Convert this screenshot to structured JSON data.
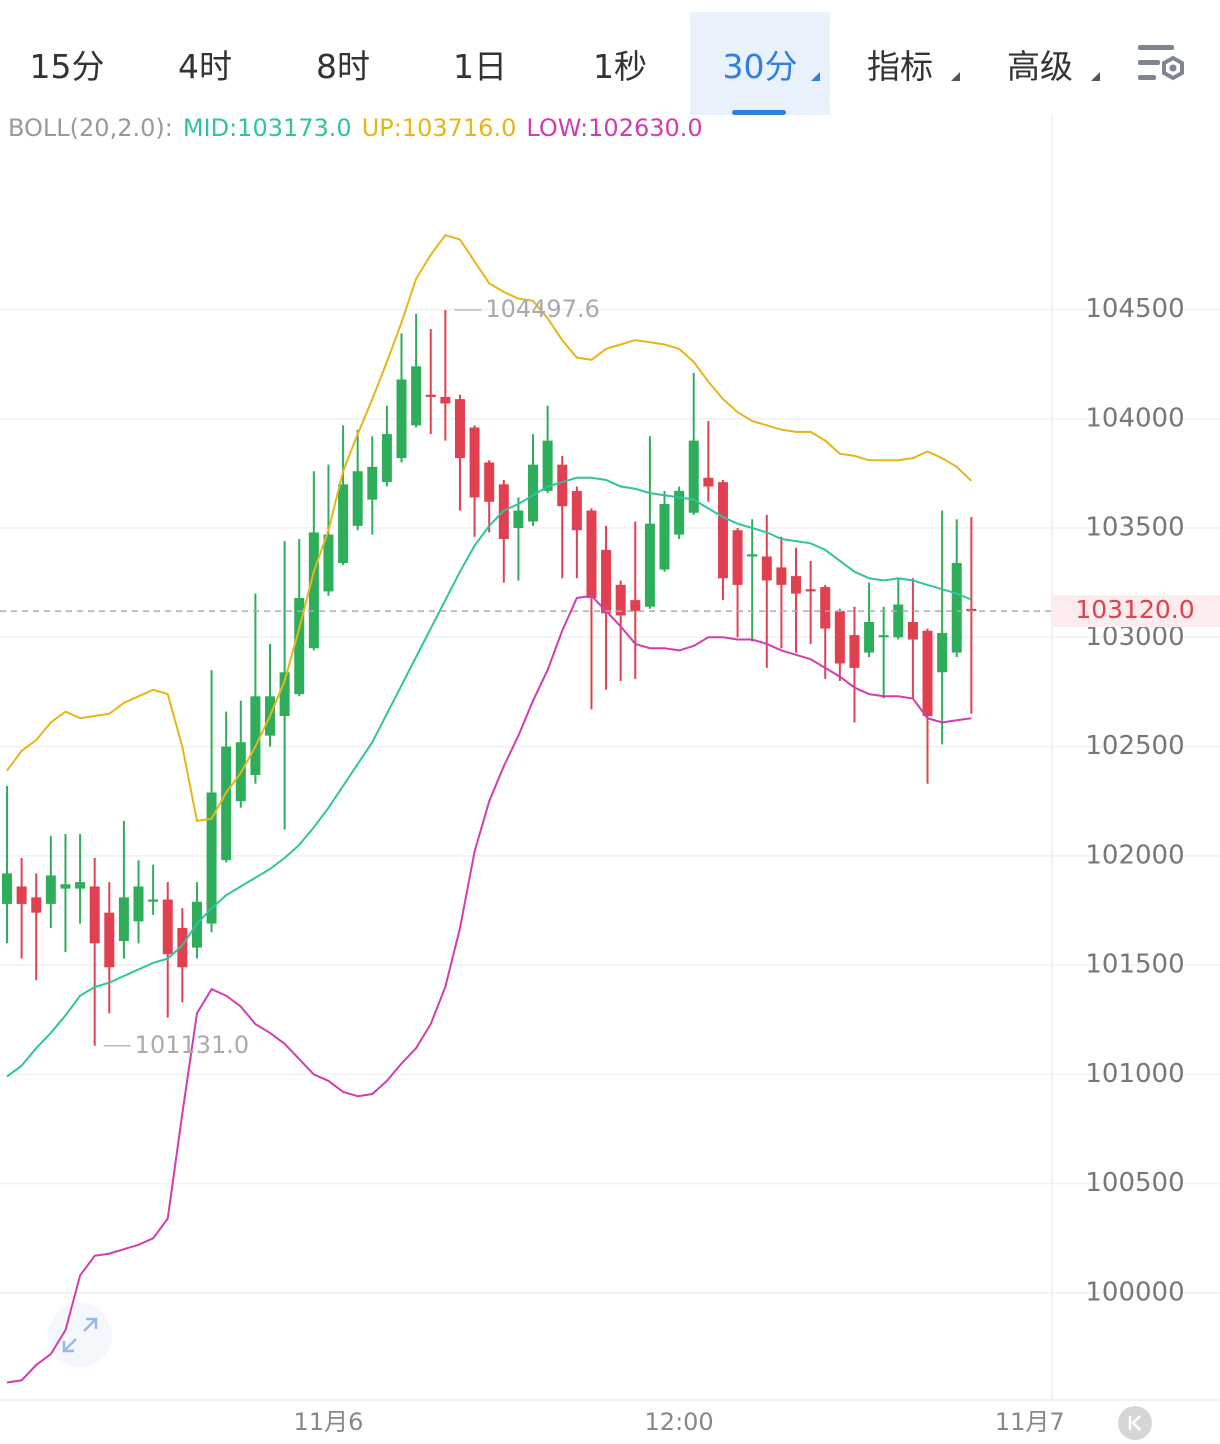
{
  "tabs": [
    {
      "label": "15分"
    },
    {
      "label": "4时"
    },
    {
      "label": "8时"
    },
    {
      "label": "1日"
    },
    {
      "label": "1秒"
    },
    {
      "label": "30分",
      "active": true,
      "dropdown": true
    },
    {
      "label": "指标",
      "dropdown": true
    },
    {
      "label": "高级",
      "dropdown": true
    }
  ],
  "chart_data": {
    "type": "candlestick",
    "indicator_label": "BOLL(20,2.0):",
    "x": [
      0,
      1,
      2,
      3,
      4,
      5,
      6,
      7,
      8,
      9,
      10,
      11,
      12,
      13,
      14,
      15,
      16,
      17,
      18,
      19,
      20,
      21,
      22,
      23,
      24,
      25,
      26,
      27,
      28,
      29,
      30,
      31,
      32,
      33,
      34,
      35,
      36,
      37,
      38,
      39,
      40,
      41,
      42,
      43,
      44,
      45,
      46,
      47,
      48,
      49,
      50,
      51,
      52,
      53,
      54,
      55,
      56,
      57,
      58,
      59,
      60,
      61,
      62,
      63,
      64,
      65,
      66
    ],
    "xlim": [
      -0.48,
      71.52
    ],
    "xticks": [
      {
        "value": 22,
        "label": "11月6"
      },
      {
        "value": 46,
        "label": "12:00"
      },
      {
        "value": 70,
        "label": "11月7"
      }
    ],
    "ylim": [
      99510,
      105390
    ],
    "yticks": [
      100000,
      100500,
      101000,
      101500,
      102000,
      102500,
      103000,
      103500,
      104000,
      104500
    ],
    "grid": true,
    "up_color": "#2eae5a",
    "down_color": "#e0404f",
    "open": [
      101780,
      101860,
      101810,
      101780,
      101850,
      101850,
      101860,
      101740,
      101610,
      101700,
      101790,
      101800,
      101670,
      101580,
      101690,
      101980,
      102250,
      102370,
      102550,
      102640,
      102740,
      102950,
      103210,
      103340,
      103510,
      103630,
      103710,
      103820,
      103970,
      104110,
      104100,
      104090,
      103960,
      103800,
      103700,
      103500,
      103530,
      103670,
      103790,
      103670,
      103580,
      103400,
      103240,
      103170,
      103140,
      103310,
      103470,
      103570,
      103730,
      103710,
      103490,
      103370,
      103370,
      103320,
      103280,
      103220,
      103230,
      103120,
      103010,
      102930,
      103000,
      103000,
      103070,
      103030,
      102840,
      102930,
      103130
    ],
    "high": [
      102320,
      101990,
      101920,
      102090,
      102100,
      102100,
      101990,
      101880,
      102160,
      101980,
      101960,
      101880,
      101760,
      101880,
      102850,
      102660,
      102710,
      103200,
      102970,
      103440,
      103450,
      103760,
      103790,
      103970,
      103950,
      103920,
      104060,
      104390,
      104480,
      104410,
      104497.6,
      104110,
      103970,
      103810,
      103720,
      103640,
      103930,
      104060,
      103830,
      103690,
      103590,
      103510,
      103260,
      103530,
      103920,
      103670,
      103690,
      104210,
      103990,
      103720,
      103500,
      103540,
      103560,
      103460,
      103410,
      103350,
      103240,
      103130,
      103140,
      103250,
      103140,
      103270,
      103270,
      103040,
      103580,
      103540,
      103550
    ],
    "low": [
      101600,
      101530,
      101430,
      101670,
      101560,
      101690,
      101131,
      101280,
      101530,
      101600,
      101730,
      101260,
      101330,
      101530,
      101650,
      101970,
      102220,
      102330,
      102500,
      102120,
      102730,
      102940,
      103190,
      103330,
      103490,
      103470,
      103690,
      103800,
      103960,
      103930,
      103900,
      103580,
      103460,
      103480,
      103250,
      103260,
      103510,
      103660,
      103270,
      103270,
      102670,
      102760,
      102800,
      102810,
      103130,
      103300,
      103450,
      103560,
      103620,
      103170,
      103000,
      102980,
      102860,
      102950,
      102930,
      102970,
      102810,
      102800,
      102610,
      102910,
      102720,
      102990,
      102720,
      102330,
      102510,
      102910,
      102650
    ],
    "close": [
      101920,
      101780,
      101740,
      101910,
      101870,
      101880,
      101600,
      101490,
      101810,
      101860,
      101800,
      101550,
      101490,
      101790,
      102290,
      102500,
      102520,
      102730,
      102730,
      102840,
      103180,
      103480,
      103470,
      103700,
      103760,
      103780,
      103930,
      104180,
      104240,
      104100,
      104070,
      103820,
      103640,
      103620,
      103450,
      103580,
      103790,
      103900,
      103600,
      103490,
      103180,
      103110,
      103100,
      103120,
      103520,
      103610,
      103670,
      103900,
      103690,
      103270,
      103240,
      103380,
      103260,
      103240,
      103200,
      103210,
      103040,
      102880,
      102860,
      103070,
      103010,
      103150,
      102990,
      102640,
      103020,
      103340,
      103120
    ],
    "series": [
      {
        "name": "MID:103173.0",
        "color": "#2ec4a0",
        "values": [
          100990,
          101040,
          101120,
          101190,
          101270,
          101360,
          101400,
          101420,
          101450,
          101480,
          101510,
          101530,
          101590,
          101690,
          101760,
          101820,
          101860,
          101900,
          101940,
          101990,
          102050,
          102130,
          102220,
          102320,
          102420,
          102520,
          102650,
          102780,
          102910,
          103040,
          103170,
          103300,
          103420,
          103510,
          103580,
          103610,
          103650,
          103690,
          103710,
          103730,
          103730,
          103720,
          103690,
          103680,
          103660,
          103650,
          103640,
          103630,
          103590,
          103550,
          103520,
          103500,
          103480,
          103450,
          103440,
          103430,
          103400,
          103350,
          103300,
          103270,
          103260,
          103270,
          103260,
          103240,
          103220,
          103200,
          103173
        ]
      },
      {
        "name": "UP:103716.0",
        "color": "#e8b516",
        "values": [
          102390,
          102480,
          102530,
          102610,
          102660,
          102630,
          102640,
          102650,
          102700,
          102730,
          102760,
          102740,
          102500,
          102160,
          102170,
          102290,
          102380,
          102500,
          102640,
          102800,
          103040,
          103300,
          103490,
          103760,
          103930,
          104090,
          104260,
          104440,
          104640,
          104750,
          104840,
          104820,
          104720,
          104620,
          104580,
          104550,
          104540,
          104460,
          104360,
          104280,
          104270,
          104320,
          104340,
          104360,
          104350,
          104340,
          104320,
          104260,
          104170,
          104090,
          104030,
          103990,
          103970,
          103950,
          103940,
          103940,
          103900,
          103840,
          103830,
          103810,
          103810,
          103810,
          103820,
          103850,
          103820,
          103780,
          103716
        ]
      },
      {
        "name": "LOW:102630.0",
        "color": "#d33bb0",
        "values": [
          99590,
          99600,
          99670,
          99720,
          99830,
          100080,
          100170,
          100180,
          100200,
          100220,
          100250,
          100340,
          100820,
          101280,
          101390,
          101360,
          101310,
          101230,
          101190,
          101140,
          101070,
          101000,
          100970,
          100920,
          100900,
          100910,
          100970,
          101050,
          101120,
          101230,
          101400,
          101670,
          102020,
          102250,
          102410,
          102550,
          102710,
          102850,
          103030,
          103180,
          103190,
          103120,
          103050,
          102970,
          102950,
          102950,
          102940,
          102960,
          103000,
          103000,
          102990,
          102990,
          102970,
          102940,
          102920,
          102900,
          102860,
          102820,
          102770,
          102740,
          102730,
          102730,
          102720,
          102630,
          102610,
          102620,
          102630
        ]
      }
    ],
    "max_label": "104497.6",
    "min_label": "101131.0",
    "last_price": {
      "value": 103120,
      "label": "103120.0"
    }
  }
}
